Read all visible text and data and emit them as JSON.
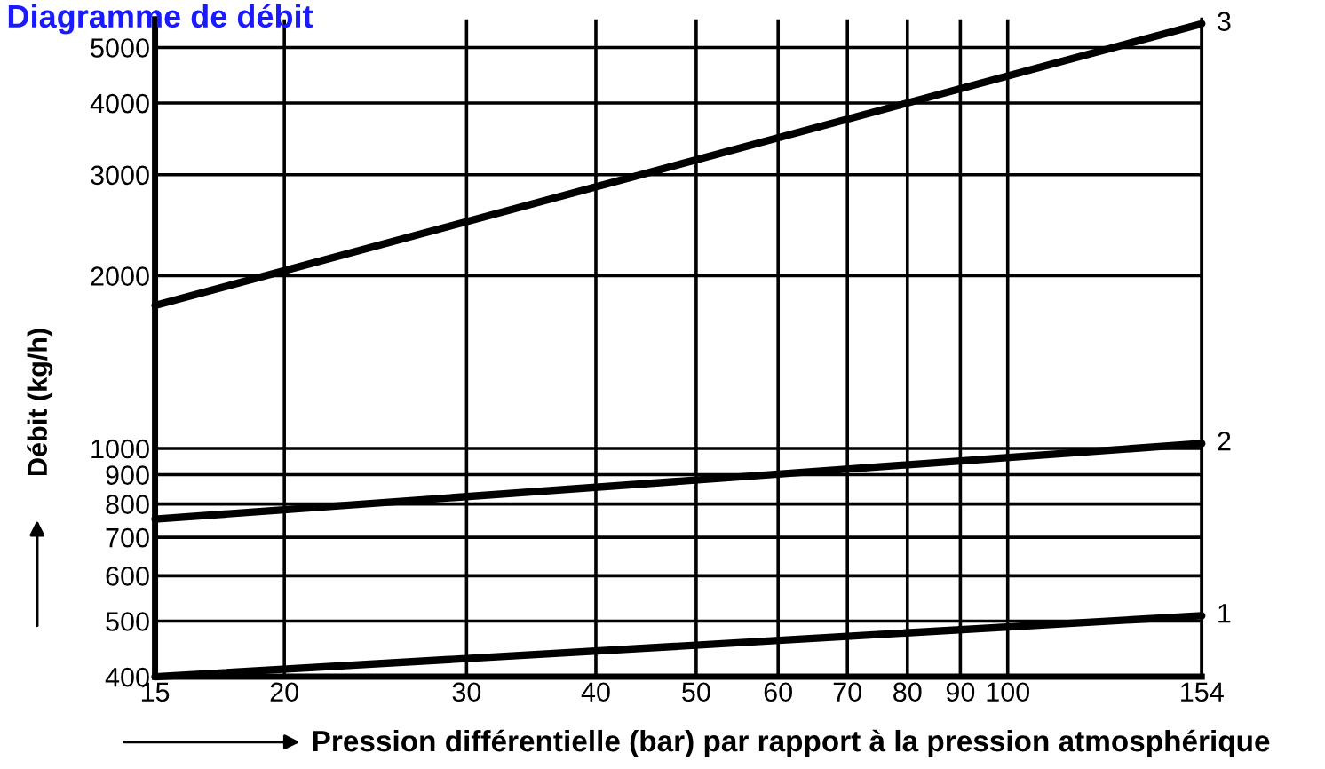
{
  "chart_data": {
    "type": "line",
    "title": "Diagramme de débit",
    "xlabel": "Pression différentielle (bar) par rapport à la pression atmosphérique",
    "ylabel": "Débit (kg/h)",
    "log": "xy",
    "grid": true,
    "legend": false,
    "marker": "none",
    "line_style": "solid",
    "xlim": [
      15,
      154
    ],
    "ylim": [
      400,
      5600
    ],
    "xticks": [
      15,
      20,
      30,
      40,
      50,
      60,
      70,
      80,
      90,
      100,
      154
    ],
    "yticks": [
      400,
      500,
      600,
      700,
      800,
      900,
      1000,
      2000,
      3000,
      4000,
      5000
    ],
    "x": [
      15,
      154
    ],
    "series": [
      {
        "name": "1",
        "color": "#000000",
        "values": [
          400,
          511
        ]
      },
      {
        "name": "2",
        "color": "#000000",
        "values": [
          753,
          1020
        ]
      },
      {
        "name": "3",
        "color": "#000000",
        "values": [
          1775,
          5500
        ]
      }
    ]
  }
}
